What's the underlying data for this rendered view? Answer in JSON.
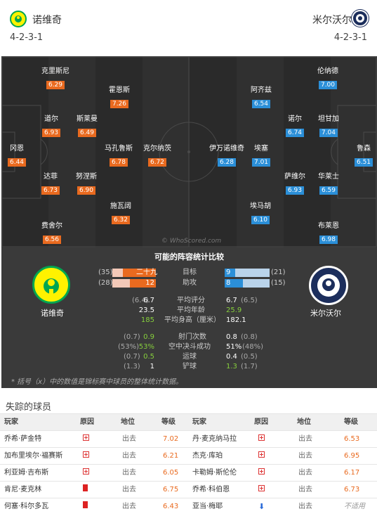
{
  "home": {
    "name": "诺维奇",
    "formation": "4-2-3-1",
    "color": "#fff200"
  },
  "away": {
    "name": "米尔沃尔",
    "formation": "4-2-3-1",
    "color": "#1c2e5c"
  },
  "home_players": [
    {
      "name": "克里斯尼",
      "rating": "6.29"
    },
    {
      "name": "霍恩斯",
      "rating": "7.26"
    },
    {
      "name": "道尔",
      "rating": "6.93"
    },
    {
      "name": "斯莱曼",
      "rating": "6.49"
    },
    {
      "name": "冈恩",
      "rating": "6.44"
    },
    {
      "name": "马孔鲁斯",
      "rating": "6.78"
    },
    {
      "name": "克尔纳茨",
      "rating": "6.72"
    },
    {
      "name": "达菲",
      "rating": "6.73"
    },
    {
      "name": "努涅斯",
      "rating": "6.90"
    },
    {
      "name": "施瓦阔",
      "rating": "6.32"
    },
    {
      "name": "费舍尔",
      "rating": "6.56"
    }
  ],
  "away_players": [
    {
      "name": "伦纳德",
      "rating": "7.00"
    },
    {
      "name": "阿齐兹",
      "rating": "6.54"
    },
    {
      "name": "诺尔",
      "rating": "6.74"
    },
    {
      "name": "坦甘加",
      "rating": "7.04"
    },
    {
      "name": "伊万诺维奇",
      "rating": "6.28"
    },
    {
      "name": "埃塞",
      "rating": "7.01"
    },
    {
      "name": "鲁森",
      "rating": "6.51"
    },
    {
      "name": "萨维尔",
      "rating": "6.93"
    },
    {
      "name": "华莱士",
      "rating": "6.59"
    },
    {
      "name": "埃马胡",
      "rating": "6.10"
    },
    {
      "name": "布莱恩",
      "rating": "6.98"
    }
  ],
  "watermark": "© WhoScored.com",
  "stats": {
    "title": "可能的阵容统计比较",
    "bar_rows": [
      {
        "label": "目标",
        "home_rank": "(35)",
        "home_value": "二十九",
        "away_value": "9",
        "away_rank": "(21)",
        "home_fill": 0.76,
        "away_fill": 0.24
      },
      {
        "label": "助攻",
        "home_rank": "(28)",
        "home_value": "12",
        "away_value": "8",
        "away_rank": "(15)",
        "home_fill": 0.6,
        "away_fill": 0.4
      }
    ],
    "rows_a": [
      {
        "label": "平均评分",
        "home_rank": "(6.4)",
        "home_value": "6.7",
        "away_value": "6.7",
        "away_rank": "(6.5)"
      },
      {
        "label": "平均年龄",
        "home_rank": "",
        "home_value": "23.5",
        "away_value": "25.9",
        "away_rank": ""
      },
      {
        "label": "平均身高（厘米）",
        "home_rank": "",
        "home_value": "185",
        "away_value": "182.1",
        "away_rank": ""
      }
    ],
    "rows_b": [
      {
        "label": "射门次数",
        "home_rank": "(0.7)",
        "home_value": "0.9",
        "away_value": "0.8",
        "away_rank": "(0.8)"
      },
      {
        "label": "空中决斗成功",
        "home_rank": "(53%)",
        "home_value": "53%",
        "away_value": "51%",
        "away_rank": "(48%)"
      },
      {
        "label": "运球",
        "home_rank": "(0.7)",
        "home_value": "0.5",
        "away_value": "0.4",
        "away_rank": "(0.5)"
      },
      {
        "label": "铲球",
        "home_rank": "(1.3)",
        "home_value": "1",
        "away_value": "1.3",
        "away_rank": "(1.7)"
      }
    ],
    "footnote": "* 括号（x）中的数值是锦标赛中球员的整体统计数据。"
  },
  "missing": {
    "title": "失踪的球员",
    "headers": {
      "player": "玩家",
      "reason": "原因",
      "status": "地位",
      "rating": "等级"
    },
    "home": [
      {
        "name": "乔希·萨金特",
        "reason": "injury-icon",
        "status": "出去",
        "rating": "7.02"
      },
      {
        "name": "加布里埃尔·福赛斯",
        "reason": "injury-icon",
        "status": "出去",
        "rating": "6.21"
      },
      {
        "name": "利亚姆·吉布斯",
        "reason": "injury-icon",
        "status": "出去",
        "rating": "6.05"
      },
      {
        "name": "肯尼·麦克林",
        "reason": "red-card-icon",
        "status": "出去",
        "rating": "6.75"
      },
      {
        "name": "何塞·科尔多瓦",
        "reason": "red-card-icon",
        "status": "出去",
        "rating": "6.43"
      }
    ],
    "away": [
      {
        "name": "丹·麦克纳马拉",
        "reason": "injury-icon",
        "status": "出去",
        "rating": "6.53"
      },
      {
        "name": "杰克·库珀",
        "reason": "injury-icon",
        "status": "出去",
        "rating": "6.95"
      },
      {
        "name": "卡勒姆·斯伦伦",
        "reason": "injury-icon",
        "status": "出去",
        "rating": "6.17"
      },
      {
        "name": "乔希·科伯恩",
        "reason": "injury-icon",
        "status": "出去",
        "rating": "6.73"
      },
      {
        "name": "亚当·梅耶",
        "reason": "arrow-down-icon",
        "status": "出去",
        "rating": "不适用"
      }
    ]
  }
}
